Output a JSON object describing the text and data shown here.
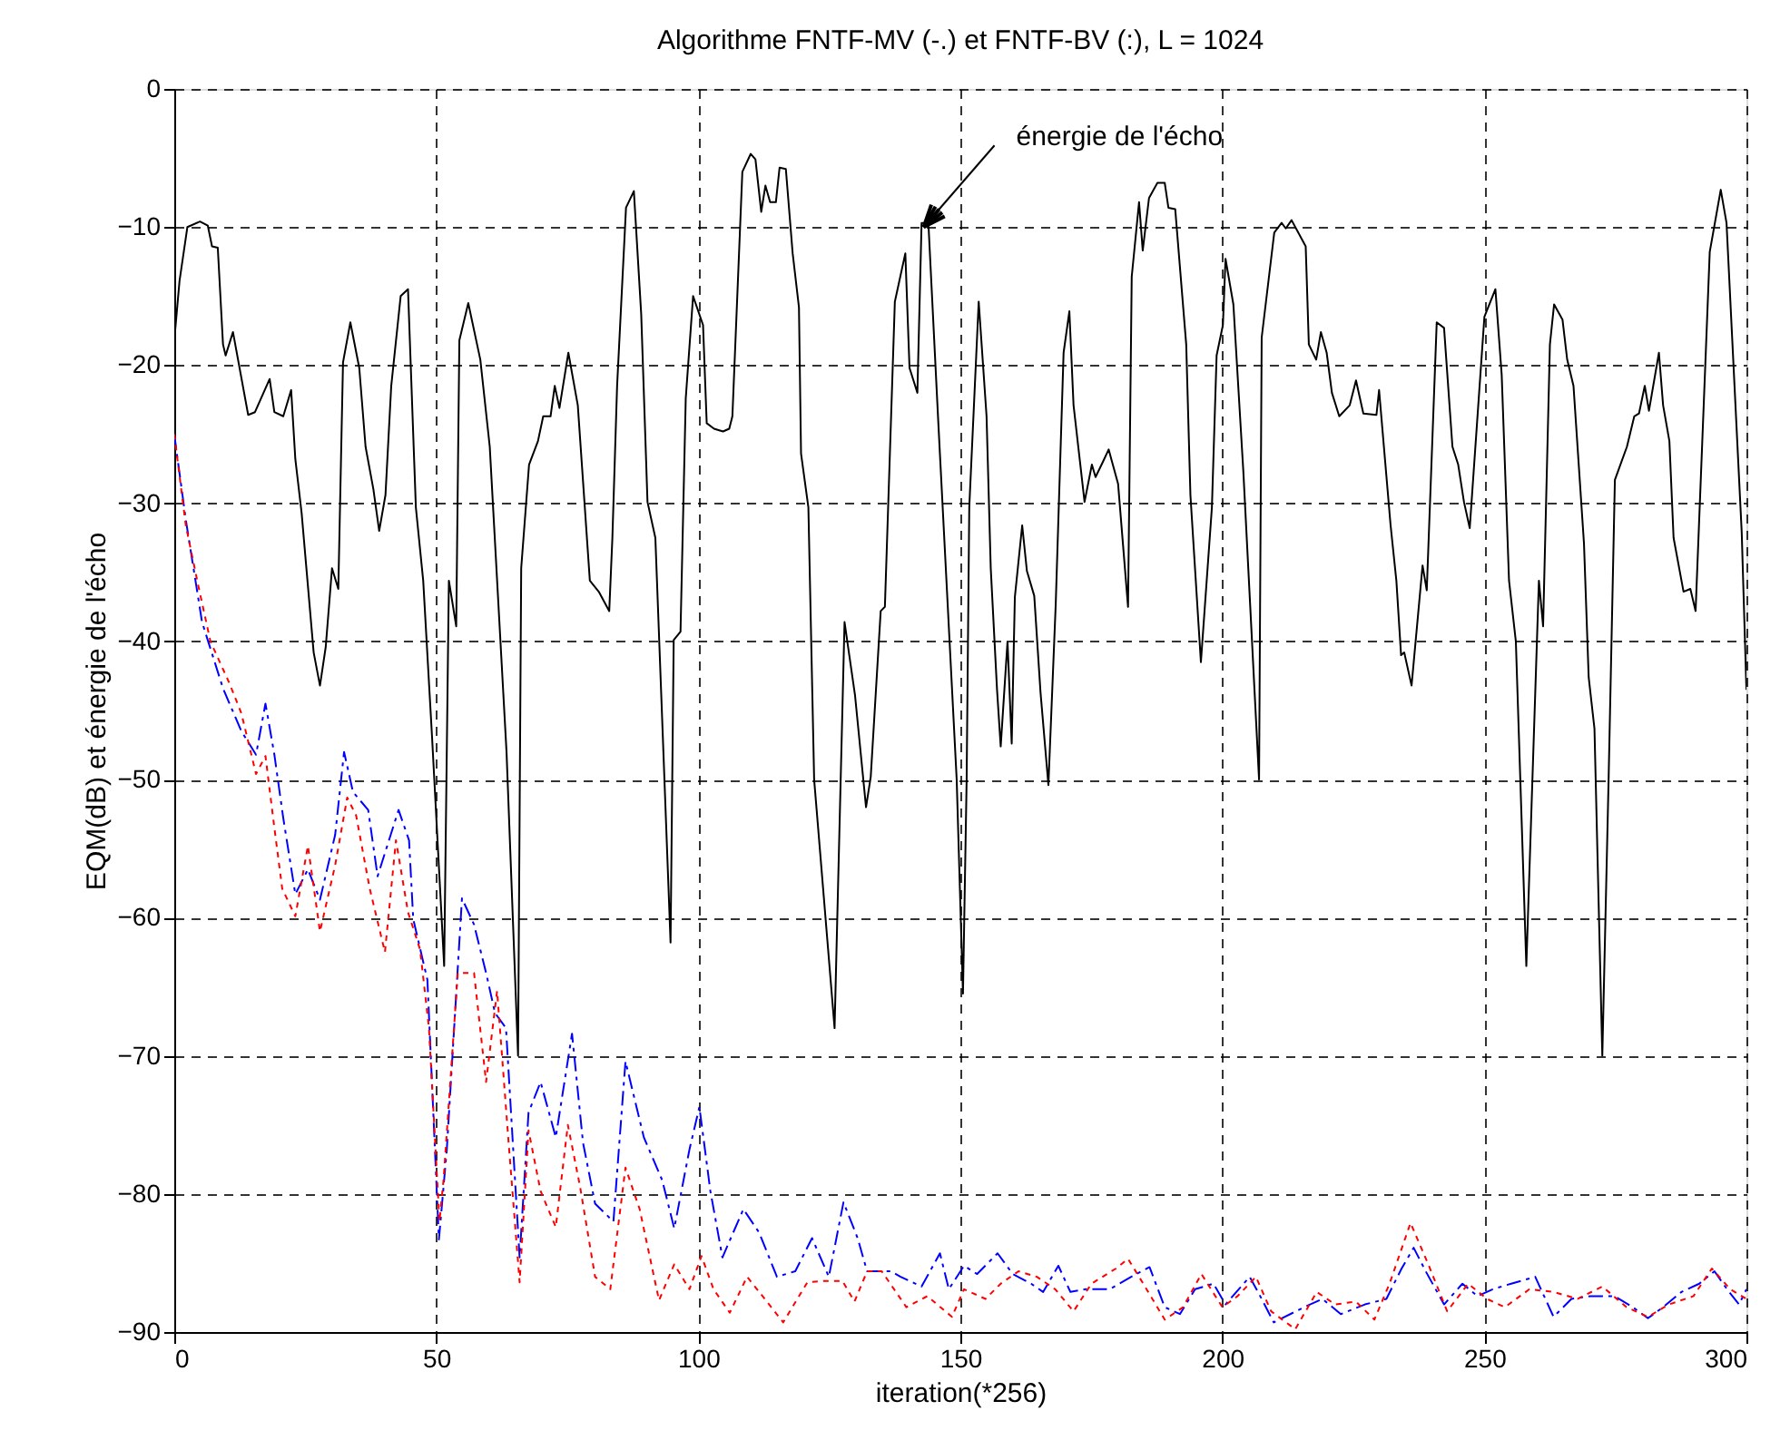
{
  "chart_data": {
    "type": "line",
    "title": "Algorithme FNTF-MV (-.) et FNTF-BV (:), L = 1024",
    "xlabel": "iteration(*256)",
    "ylabel": "EQM(dB) et énergie de l'écho",
    "xlim": [
      0,
      300
    ],
    "ylim": [
      -90,
      0
    ],
    "xticks": [
      0,
      50,
      100,
      150,
      200,
      250,
      300
    ],
    "yticks": [
      -90,
      -80,
      -70,
      -60,
      -50,
      -40,
      -30,
      -20,
      -10,
      0
    ],
    "grid": true,
    "annotations": [
      {
        "text": "énergie de l'écho",
        "x": 143,
        "y": -10
      }
    ],
    "series": [
      {
        "color": "#000000",
        "line_style": "solid",
        "x": [
          0,
          1,
          2.5,
          4.9,
          6.4,
          7.2,
          8.3,
          9.3,
          9.8,
          11.2,
          14.1,
          15.4,
          18.2,
          19.1,
          20.8,
          22.3,
          23.1,
          24.3,
          26.6,
          27.8,
          28.9,
          30.1,
          31.3,
          32.2,
          33.6,
          35.3,
          36.5,
          38,
          39.1,
          40.3,
          41.4,
          43.2,
          44.6,
          46.1,
          47.5,
          49.2,
          51.5,
          52.4,
          53.8,
          54.4,
          56.1,
          58.4,
          60.2,
          63.4,
          65.6,
          66.2,
          67.7,
          69.4,
          70.4,
          71.8,
          72.6,
          73.5,
          75.2,
          77,
          79.3,
          81,
          83,
          83.6,
          84.5,
          86.2,
          87.7,
          89.1,
          90.3,
          91.8,
          94.7,
          95.3,
          96.6,
          97.6,
          99,
          100.9,
          101.6,
          103,
          104.7,
          105.9,
          106.5,
          108.4,
          110,
          110.9,
          112,
          112.8,
          113.7,
          114.8,
          115.5,
          116.7,
          118,
          119.2,
          119.6,
          121,
          122.1,
          126,
          127.9,
          129.9,
          132,
          132.9,
          134.8,
          135.6,
          137.5,
          139.5,
          140.3,
          141.8,
          142.6,
          143.9,
          145.8,
          149.3,
          150.5,
          151.2,
          151.7,
          153.5,
          155,
          155.8,
          157,
          157.7,
          159,
          159.8,
          160.4,
          161.8,
          162.7,
          164.1,
          165.3,
          166.8,
          168.2,
          169.7,
          170.8,
          171.6,
          173.7,
          175.1,
          175.8,
          177.2,
          178.3,
          180.1,
          182,
          182.7,
          184.1,
          184.8,
          186,
          187.6,
          189,
          189.7,
          191,
          193.1,
          193.9,
          195.9,
          198,
          198.9,
          200.1,
          200.6,
          202.1,
          204,
          207,
          207.5,
          209.9,
          211.3,
          212.1,
          213.2,
          215.9,
          216.5,
          217.9,
          218.8,
          219.9,
          220.9,
          222.3,
          224.3,
          225.5,
          226.9,
          229.4,
          229.9,
          232.1,
          233.2,
          234.1,
          234.7,
          236.1,
          238.2,
          239,
          240.9,
          242.3,
          243.9,
          245,
          246.1,
          247.2,
          250,
          252.1,
          253.3,
          254.7,
          256,
          258,
          260.4,
          261.2,
          262.5,
          263.3,
          264.9,
          265.8,
          267,
          269,
          269.9,
          271,
          272.5,
          273.7,
          274.9,
          277.2,
          278.6,
          279.5,
          280.6,
          281.4,
          283.3,
          284.1,
          285.3,
          286.1,
          288,
          289.3,
          290.3,
          293,
          295.1,
          296.2,
          299.1,
          300
        ],
        "values": [
          -18.2,
          -13.9,
          -10,
          -9.6,
          -9.9,
          -11.4,
          -11.5,
          -18.5,
          -19.3,
          -17.6,
          -23.6,
          -23.4,
          -21,
          -23.4,
          -23.7,
          -21.8,
          -26.8,
          -30.7,
          -40.8,
          -43.2,
          -40.4,
          -34.7,
          -36.2,
          -19.8,
          -16.9,
          -20.2,
          -25.9,
          -29,
          -32,
          -29.4,
          -21.5,
          -15,
          -14.5,
          -30.3,
          -35.6,
          -47,
          -63.5,
          -35.6,
          -38.9,
          -18.2,
          -15.5,
          -19.6,
          -25.9,
          -48,
          -70,
          -34.7,
          -27.2,
          -25.5,
          -23.7,
          -23.7,
          -21.5,
          -23.1,
          -19.1,
          -22.9,
          -35.6,
          -36.4,
          -37.8,
          -32.5,
          -21.5,
          -8.6,
          -7.4,
          -16.3,
          -29.9,
          -32.5,
          -61.8,
          -39.9,
          -39.3,
          -22.4,
          -15,
          -17.1,
          -24.2,
          -24.6,
          -24.8,
          -24.6,
          -23.7,
          -6,
          -4.7,
          -5.1,
          -8.9,
          -7,
          -8.2,
          -8.2,
          -5.7,
          -5.8,
          -11.9,
          -15.8,
          -26.4,
          -30.3,
          -50,
          -68,
          -38.6,
          -43.9,
          -52,
          -49.8,
          -37.8,
          -37.5,
          -15.4,
          -11.9,
          -20.2,
          -22,
          -9.7,
          -9.7,
          -24.2,
          -50,
          -65.5,
          -50,
          -30.3,
          -15.4,
          -23.7,
          -34.7,
          -43.5,
          -47.6,
          -40,
          -47.4,
          -36.8,
          -31.6,
          -34.9,
          -36.7,
          -43.7,
          -50.4,
          -37.3,
          -19.1,
          -16.1,
          -22.9,
          -29.9,
          -27.2,
          -28.1,
          -27,
          -26.1,
          -28.6,
          -37.5,
          -13.6,
          -8.2,
          -11.7,
          -7.9,
          -6.8,
          -6.8,
          -8.6,
          -8.7,
          -18.5,
          -29.4,
          -41.5,
          -30.3,
          -19.3,
          -17.1,
          -12.3,
          -15.6,
          -27.7,
          -50,
          -18,
          -10.4,
          -9.7,
          -10.1,
          -9.5,
          -11.4,
          -18.5,
          -19.6,
          -17.6,
          -19.1,
          -22,
          -23.7,
          -22.9,
          -21.1,
          -23.5,
          -23.6,
          -21.8,
          -31.6,
          -35.6,
          -41,
          -40.8,
          -43.2,
          -34.5,
          -36.3,
          -16.9,
          -17.3,
          -25.9,
          -27.2,
          -29.9,
          -31.8,
          -16.5,
          -14.5,
          -20.7,
          -35.6,
          -40,
          -63.5,
          -35.6,
          -38.9,
          -18.5,
          -15.6,
          -16.7,
          -19.6,
          -21.5,
          -32.9,
          -42.6,
          -46.3,
          -70,
          -50,
          -28.3,
          -25.9,
          -23.7,
          -23.5,
          -21.5,
          -23.3,
          -19.1,
          -22.9,
          -25.5,
          -32.5,
          -36.4,
          -36.2,
          -37.8,
          -11.8,
          -7.3,
          -9.7,
          -32.1,
          -43.5
        ]
      },
      {
        "color": "#0000ff",
        "line_style": "dashed",
        "x": [
          0,
          2.2,
          5.3,
          9.3,
          12.8,
          15.6,
          17.4,
          19.1,
          20.8,
          23.1,
          25.5,
          27.8,
          30.7,
          32.4,
          34.1,
          37,
          38.8,
          42.8,
          44.8,
          45.6,
          48.3,
          50.5,
          52,
          54.9,
          57.2,
          59.5,
          61.2,
          63.3,
          65.9,
          67.6,
          69.9,
          72.8,
          75.9,
          78,
          80.3,
          83.8,
          86.1,
          89.6,
          93.1,
          95.4,
          98.3,
          100.2,
          102.3,
          104.6,
          108.6,
          111.6,
          115,
          118.5,
          121.7,
          124.9,
          127.7,
          130.4,
          132.2,
          136.8,
          138.6,
          142.6,
          146.1,
          147.8,
          150.7,
          153.2,
          157.1,
          160,
          163.5,
          165.8,
          168.7,
          171,
          173.9,
          178.5,
          182.6,
          186.1,
          189,
          191.9,
          194.8,
          198.3,
          200.6,
          205.2,
          207.5,
          209.8,
          215.6,
          219.1,
          222.6,
          227.2,
          231.3,
          234.2,
          236.5,
          238.8,
          242.3,
          245.8,
          248.7,
          251.6,
          255.1,
          259.7,
          263.2,
          266.6,
          270.2,
          274.8,
          278.3,
          281.2,
          284.1,
          287.6,
          291,
          293.9,
          296.3,
          298.6,
          300
        ],
        "values": [
          -25,
          -31.2,
          -38.6,
          -43.4,
          -46.5,
          -48.2,
          -44.5,
          -48.2,
          -52.8,
          -58.3,
          -56.5,
          -58.7,
          -54,
          -48,
          -50.9,
          -52.2,
          -57,
          -52.2,
          -54.4,
          -60.1,
          -64.5,
          -83.3,
          -76.8,
          -58.6,
          -60.5,
          -64,
          -66.9,
          -68,
          -84.6,
          -74.1,
          -71.9,
          -75.9,
          -68.4,
          -76.3,
          -80.7,
          -82,
          -70.4,
          -75.9,
          -79,
          -82.5,
          -76.8,
          -73.7,
          -79.8,
          -84.6,
          -81.1,
          -82.8,
          -86,
          -85.6,
          -83.2,
          -86,
          -80.6,
          -83.2,
          -85.6,
          -85.6,
          -86,
          -86.7,
          -84.3,
          -86.9,
          -85.2,
          -85.8,
          -84.3,
          -85.8,
          -86.5,
          -87.1,
          -85.2,
          -87.1,
          -86.9,
          -86.9,
          -86,
          -85.3,
          -88.2,
          -88.7,
          -86.9,
          -86.5,
          -88,
          -86,
          -87.6,
          -89.3,
          -88.2,
          -87.6,
          -88.7,
          -88,
          -87.6,
          -85.4,
          -83.9,
          -85.6,
          -88,
          -86.5,
          -87.4,
          -86.9,
          -86.5,
          -86,
          -88.9,
          -87.6,
          -87.4,
          -87.4,
          -88.2,
          -89,
          -88.2,
          -87.1,
          -86.5,
          -85.6,
          -86.9,
          -88,
          -86.9
        ]
      },
      {
        "color": "#ff0000",
        "line_style": "dotted",
        "x": [
          0,
          2.2,
          4.6,
          6.9,
          10.6,
          12.8,
          15.6,
          17.4,
          19.1,
          20.6,
          23.1,
          25.5,
          27.8,
          30.7,
          33,
          34.7,
          37.3,
          40.2,
          42.3,
          44.6,
          46.9,
          48.6,
          50.6,
          51.4,
          54.1,
          57.2,
          59.5,
          61.6,
          63.8,
          65.9,
          67.6,
          69.9,
          72.8,
          75.1,
          77.4,
          80.3,
          83.2,
          86.1,
          88.8,
          92.5,
          95.4,
          98.3,
          100.6,
          102.9,
          106,
          109.3,
          113.3,
          116.2,
          120.8,
          124,
          127.5,
          129.8,
          132.2,
          135,
          139.7,
          143.7,
          148.4,
          150.7,
          154.8,
          157.7,
          161.1,
          164.6,
          168.1,
          171.6,
          175,
          179.7,
          182,
          184.9,
          189,
          192.5,
          196,
          200,
          202.9,
          206.4,
          209.3,
          213.9,
          218,
          221.5,
          225.5,
          229,
          231.9,
          235.9,
          239.4,
          242.9,
          246.9,
          250.5,
          253.9,
          258.6,
          263.2,
          267.8,
          272.5,
          277.1,
          281.2,
          285.2,
          289.9,
          293.4,
          296.9,
          300
        ],
        "values": [
          -25,
          -31.6,
          -36,
          -40,
          -43.1,
          -45.2,
          -49.6,
          -48.3,
          -53.5,
          -57.9,
          -59.9,
          -54.8,
          -61,
          -56.2,
          -51.3,
          -52.6,
          -57.9,
          -62.5,
          -54.4,
          -59.6,
          -62.3,
          -68,
          -82,
          -78.9,
          -64,
          -64,
          -71.9,
          -65.3,
          -76.3,
          -86.4,
          -75.4,
          -79.8,
          -82.4,
          -75,
          -79.4,
          -86,
          -86.9,
          -78.1,
          -81.1,
          -87.7,
          -85.1,
          -86.9,
          -84.5,
          -86.9,
          -88.6,
          -86,
          -87.9,
          -89.3,
          -86.4,
          -86.3,
          -86.3,
          -87.8,
          -85.6,
          -85.6,
          -88.2,
          -87.4,
          -88.9,
          -86.9,
          -87.6,
          -86.5,
          -85.6,
          -86,
          -86.9,
          -88.5,
          -86.5,
          -85.4,
          -84.7,
          -86.5,
          -89.1,
          -88.2,
          -85.8,
          -88.2,
          -87.4,
          -86,
          -88.5,
          -89.8,
          -87.1,
          -88,
          -87.8,
          -89.1,
          -86.5,
          -82.1,
          -85.2,
          -88.5,
          -86.5,
          -87.6,
          -88.2,
          -86.9,
          -87.1,
          -87.6,
          -86.7,
          -88.2,
          -88.9,
          -88,
          -87.4,
          -85.4,
          -86.9,
          -87.6
        ]
      }
    ]
  }
}
